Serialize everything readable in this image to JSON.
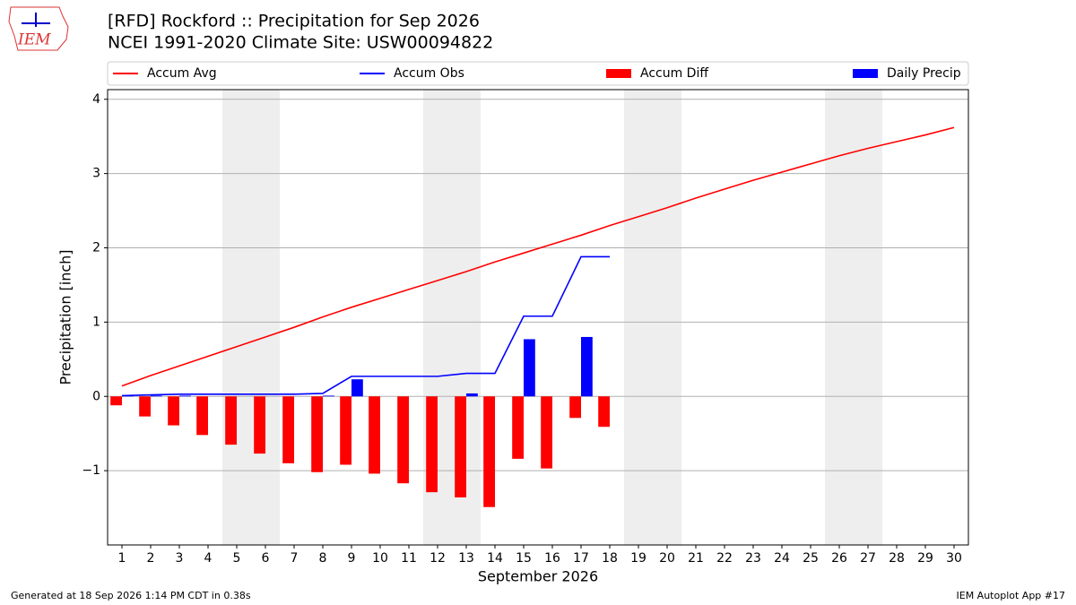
{
  "logo_text": "IEM",
  "footer": {
    "left": "Generated at 18 Sep 2026 1:14 PM CDT in 0.38s",
    "right": "IEM Autoplot App #17"
  },
  "chart_data": {
    "type": "combo",
    "title": "[RFD] Rockford :: Precipitation for Sep 2026",
    "subtitle": "NCEI 1991-2020 Climate Site: USW00094822",
    "x_label": "September 2026",
    "y_label": "Precipitation [inch]",
    "x": [
      1,
      2,
      3,
      4,
      5,
      6,
      7,
      8,
      9,
      10,
      11,
      12,
      13,
      14,
      15,
      16,
      17,
      18,
      19,
      20,
      21,
      22,
      23,
      24,
      25,
      26,
      27,
      28,
      29,
      30
    ],
    "xlim": [
      0.5,
      30.5
    ],
    "xticks": [
      1,
      2,
      3,
      4,
      5,
      6,
      7,
      8,
      9,
      10,
      11,
      12,
      13,
      14,
      15,
      16,
      17,
      18,
      19,
      20,
      21,
      22,
      23,
      24,
      25,
      26,
      27,
      28,
      29,
      30
    ],
    "ylim": [
      -2.0,
      4.13
    ],
    "yticks": [
      {
        "value": -1,
        "label": "−1"
      },
      0,
      1,
      2,
      3,
      4
    ],
    "grid": true,
    "legend": "top",
    "series": [
      {
        "name": "Accum Avg",
        "type": "line",
        "color": "#ff0000",
        "values": [
          0.14,
          0.28,
          0.41,
          0.54,
          0.67,
          0.8,
          0.93,
          1.07,
          1.2,
          1.32,
          1.44,
          1.56,
          1.68,
          1.81,
          1.93,
          2.05,
          2.17,
          2.3,
          2.42,
          2.54,
          2.67,
          2.79,
          2.91,
          3.02,
          3.13,
          3.24,
          3.34,
          3.43,
          3.52,
          3.62
        ]
      },
      {
        "name": "Accum Obs",
        "type": "line",
        "color": "#0000ff",
        "values": [
          0.01,
          0.02,
          0.03,
          0.03,
          0.03,
          0.03,
          0.03,
          0.04,
          0.27,
          0.27,
          0.27,
          0.27,
          0.31,
          0.31,
          1.08,
          1.08,
          1.88,
          1.88,
          null,
          null,
          null,
          null,
          null,
          null,
          null,
          null,
          null,
          null,
          null,
          null
        ]
      },
      {
        "name": "Accum Diff",
        "type": "bar",
        "color": "#ff0000",
        "values": [
          -0.12,
          -0.27,
          -0.39,
          -0.52,
          -0.65,
          -0.77,
          -0.9,
          -1.02,
          -0.92,
          -1.04,
          -1.17,
          -1.29,
          -1.36,
          -1.49,
          -0.84,
          -0.97,
          -0.29,
          -0.41,
          null,
          null,
          null,
          null,
          null,
          null,
          null,
          null,
          null,
          null,
          null,
          null
        ]
      },
      {
        "name": "Daily Precip",
        "type": "bar",
        "color": "#0000ff",
        "values": [
          0.01,
          0.01,
          0.01,
          0,
          0,
          0,
          0,
          0.01,
          0.23,
          0,
          0,
          0,
          0.04,
          0,
          0.77,
          0,
          0.8,
          0,
          null,
          null,
          null,
          null,
          null,
          null,
          null,
          null,
          null,
          null,
          null,
          null
        ]
      }
    ]
  }
}
